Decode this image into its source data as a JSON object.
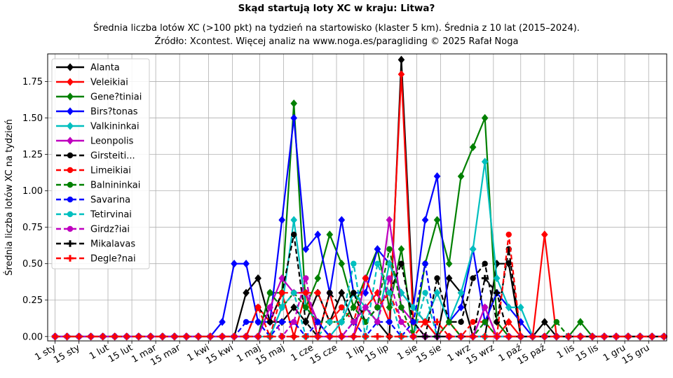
{
  "chart_data": {
    "type": "line",
    "title": "Skąd startują loty XC w kraju: Litwa?",
    "subtitle": "Średnia liczba lotów XC (>100 pkt) na tydzień na startowisko (klaster 5 km). Średnia z 10 lat (2015–2024).",
    "source": "Źródło: Xcontest. Więcej analiz na www.noga.es/paragliding © 2025 Rafał Noga",
    "xlabel": "",
    "ylabel": "Średnia liczba lotów XC na tydzień",
    "ylim": [
      -0.03,
      1.94
    ],
    "grid": true,
    "legend_position": "top-left",
    "x_ticks": [
      "1 sty",
      "15 sty",
      "1 lut",
      "15 lut",
      "1 mar",
      "15 mar",
      "1 kwi",
      "15 kwi",
      "1 maj",
      "15 maj",
      "1 cze",
      "15 cze",
      "1 lip",
      "15 lip",
      "1 sie",
      "15 sie",
      "1 wrz",
      "15 wrz",
      "1 paź",
      "15 paź",
      "1 lis",
      "15 lis",
      "1 gru",
      "15 gru"
    ],
    "y_ticks": [
      "0.00",
      "0.25",
      "0.50",
      "0.75",
      "1.00",
      "1.25",
      "1.50",
      "1.75"
    ],
    "weeks": [
      1,
      2,
      3,
      4,
      5,
      6,
      7,
      8,
      9,
      10,
      11,
      12,
      13,
      14,
      15,
      16,
      17,
      18,
      19,
      20,
      21,
      22,
      23,
      24,
      25,
      26,
      27,
      28,
      29,
      30,
      31,
      32,
      33,
      34,
      35,
      36,
      37,
      38,
      39,
      40,
      41,
      42,
      43,
      44,
      45,
      46,
      47,
      48,
      49,
      50,
      51,
      52
    ],
    "series": [
      {
        "name": "Alanta",
        "color": "#000000",
        "dash": "solid",
        "marker": "diamond",
        "values": [
          0,
          0,
          0,
          0,
          0,
          0,
          0,
          0,
          0,
          0,
          0,
          0,
          0,
          0,
          0,
          0,
          0.3,
          0.4,
          0.1,
          0.1,
          0.2,
          0.1,
          0.3,
          0.1,
          0.3,
          0.1,
          0.2,
          0.1,
          0,
          1.9,
          0.2,
          0.1,
          0,
          0.4,
          0.3,
          0,
          0,
          0.5,
          0.5,
          0,
          0,
          0.1,
          0,
          0,
          0,
          0,
          0,
          0,
          0,
          0,
          0,
          0
        ]
      },
      {
        "name": "Veleikiai",
        "color": "#ff0000",
        "dash": "solid",
        "marker": "diamond",
        "values": [
          0,
          0,
          0,
          0,
          0,
          0,
          0,
          0,
          0,
          0,
          0,
          0,
          0,
          0,
          0,
          0,
          0,
          0.2,
          0.1,
          0.3,
          0,
          0.3,
          0,
          0.3,
          0,
          0,
          0.2,
          0.3,
          0.1,
          1.8,
          0.1,
          0.1,
          0,
          0.1,
          0,
          0,
          0,
          0,
          0.1,
          0,
          0,
          0.7,
          0,
          0,
          0,
          0,
          0,
          0,
          0,
          0,
          0,
          0
        ]
      },
      {
        "name": "Gene?tiniai",
        "color": "#008000",
        "dash": "solid",
        "marker": "diamond",
        "values": [
          0,
          0,
          0,
          0,
          0,
          0,
          0,
          0,
          0,
          0,
          0,
          0,
          0,
          0,
          0,
          0,
          0,
          0,
          0.3,
          0.3,
          1.6,
          0.2,
          0.4,
          0.7,
          0.5,
          0.2,
          0.4,
          0.6,
          0.2,
          0.6,
          0,
          0.5,
          0.8,
          0.5,
          1.1,
          1.3,
          1.5,
          0.1,
          0,
          0,
          0,
          0,
          0,
          0,
          0.1,
          0,
          0,
          0,
          0,
          0,
          0,
          0
        ]
      },
      {
        "name": "Birs?tonas",
        "color": "#0000ff",
        "dash": "solid",
        "marker": "diamond",
        "values": [
          0,
          0,
          0,
          0,
          0,
          0,
          0,
          0,
          0,
          0,
          0,
          0,
          0,
          0,
          0.1,
          0.5,
          0.5,
          0.1,
          0.1,
          0.8,
          1.5,
          0.6,
          0.7,
          0.3,
          0.8,
          0.3,
          0.3,
          0.6,
          0.5,
          0.3,
          0.2,
          0.8,
          1.1,
          0.1,
          0.2,
          0.6,
          0.1,
          0.3,
          0.2,
          0.1,
          0,
          0,
          0,
          0,
          0,
          0,
          0,
          0,
          0,
          0,
          0,
          0
        ]
      },
      {
        "name": "Valkininkai",
        "color": "#00bfbf",
        "dash": "solid",
        "marker": "diamond",
        "values": [
          0,
          0,
          0,
          0,
          0,
          0,
          0,
          0,
          0,
          0,
          0,
          0,
          0,
          0,
          0,
          0,
          0,
          0,
          0,
          0.2,
          0.8,
          0.2,
          0.1,
          0,
          0.1,
          0.3,
          0.2,
          0.1,
          0.5,
          0.3,
          0.2,
          0.1,
          0.3,
          0.1,
          0.3,
          0.6,
          1.2,
          0.4,
          0.2,
          0.2,
          0,
          0,
          0,
          0,
          0,
          0,
          0,
          0,
          0,
          0,
          0,
          0
        ]
      },
      {
        "name": "Leonpolis",
        "color": "#bf00bf",
        "dash": "solid",
        "marker": "diamond",
        "values": [
          0,
          0,
          0,
          0,
          0,
          0,
          0,
          0,
          0,
          0,
          0,
          0,
          0,
          0,
          0,
          0,
          0,
          0,
          0.2,
          0.4,
          0.3,
          0.3,
          0.1,
          0,
          0,
          0,
          0.4,
          0.2,
          0.8,
          0.2,
          0.1,
          0,
          0,
          0,
          0,
          0,
          0.2,
          0,
          0,
          0,
          0,
          0,
          0,
          0,
          0,
          0,
          0,
          0,
          0,
          0,
          0,
          0
        ]
      },
      {
        "name": "Girsteiti...",
        "color": "#000000",
        "dash": "dashed",
        "marker": "circle",
        "values": [
          0,
          0,
          0,
          0,
          0,
          0,
          0,
          0,
          0,
          0,
          0,
          0,
          0,
          0,
          0,
          0,
          0,
          0.2,
          0.1,
          0.3,
          0.7,
          0.1,
          0,
          0.3,
          0.2,
          0.3,
          0.1,
          0.2,
          0.3,
          0.5,
          0.1,
          0,
          0.4,
          0.1,
          0.1,
          0.4,
          0.5,
          0.1,
          0.6,
          0,
          0,
          0,
          0,
          0,
          0,
          0,
          0,
          0,
          0,
          0,
          0,
          0
        ]
      },
      {
        "name": "Limeikiai",
        "color": "#ff0000",
        "dash": "dashed",
        "marker": "circle",
        "values": [
          0,
          0,
          0,
          0,
          0,
          0,
          0,
          0,
          0,
          0,
          0,
          0,
          0,
          0,
          0,
          0,
          0,
          0.2,
          0,
          0.3,
          0.3,
          0.3,
          0.3,
          0.1,
          0.2,
          0.1,
          0.4,
          0.2,
          0.3,
          0.1,
          0.1,
          0.1,
          0,
          0,
          0,
          0.1,
          0.1,
          0,
          0.7,
          0,
          0,
          0,
          0,
          0,
          0,
          0,
          0,
          0,
          0,
          0,
          0,
          0
        ]
      },
      {
        "name": "Balnininkai",
        "color": "#008000",
        "dash": "dashed",
        "marker": "circle",
        "values": [
          0,
          0,
          0,
          0,
          0,
          0,
          0,
          0,
          0,
          0,
          0,
          0,
          0,
          0,
          0,
          0,
          0,
          0,
          0.3,
          0.2,
          0.3,
          0.2,
          0.1,
          0.1,
          0.1,
          0.2,
          0.1,
          0.2,
          0.6,
          0.2,
          0,
          0,
          0,
          0.1,
          0,
          0,
          0.1,
          0,
          0,
          0,
          0,
          0,
          0.1,
          0,
          0,
          0,
          0,
          0,
          0,
          0,
          0,
          0
        ]
      },
      {
        "name": "Savarina",
        "color": "#0000ff",
        "dash": "dashed",
        "marker": "circle",
        "values": [
          0,
          0,
          0,
          0,
          0,
          0,
          0,
          0,
          0,
          0,
          0,
          0,
          0,
          0,
          0,
          0,
          0.1,
          0.1,
          0,
          0.1,
          0.1,
          0,
          0.1,
          0,
          0,
          0.1,
          0,
          0.1,
          0.1,
          0,
          0.1,
          0.5,
          0,
          0,
          0,
          0,
          0,
          0,
          0,
          0,
          0,
          0,
          0,
          0,
          0,
          0,
          0,
          0,
          0,
          0,
          0,
          0
        ]
      },
      {
        "name": "Tetirvinai",
        "color": "#00bfbf",
        "dash": "dashed",
        "marker": "circle",
        "values": [
          0,
          0,
          0,
          0,
          0,
          0,
          0,
          0,
          0,
          0,
          0,
          0,
          0,
          0,
          0,
          0,
          0,
          0,
          0,
          0.2,
          0.3,
          0,
          0,
          0.1,
          0.1,
          0.5,
          0,
          0.5,
          0.3,
          0,
          0,
          0.3,
          0,
          0,
          0,
          0,
          0,
          0,
          0,
          0,
          0,
          0,
          0,
          0,
          0,
          0,
          0,
          0,
          0,
          0,
          0,
          0
        ]
      },
      {
        "name": "Girdz?iai",
        "color": "#bf00bf",
        "dash": "dashed",
        "marker": "circle",
        "values": [
          0,
          0,
          0,
          0,
          0,
          0,
          0,
          0,
          0,
          0,
          0,
          0,
          0,
          0,
          0,
          0,
          0,
          0,
          0.2,
          0,
          0.1,
          0.4,
          0,
          0,
          0,
          0.1,
          0.2,
          0.1,
          0.4,
          0.1,
          0,
          0,
          0,
          0,
          0,
          0,
          0.2,
          0,
          0,
          0,
          0,
          0,
          0,
          0,
          0,
          0,
          0,
          0,
          0,
          0,
          0,
          0
        ]
      },
      {
        "name": "Mikalavas",
        "color": "#000000",
        "dash": "dashed",
        "marker": "plus",
        "values": [
          0,
          0,
          0,
          0,
          0,
          0,
          0,
          0,
          0,
          0,
          0,
          0,
          0,
          0,
          0,
          0,
          0,
          0,
          0,
          0,
          0,
          0,
          0,
          0,
          0,
          0,
          0,
          0,
          0,
          0,
          0,
          0,
          0,
          0,
          0,
          0,
          0.4,
          0.3,
          0,
          0,
          0,
          0,
          0,
          0,
          0,
          0,
          0,
          0,
          0,
          0,
          0,
          0
        ]
      },
      {
        "name": "Degle?nai",
        "color": "#ff0000",
        "dash": "dashed",
        "marker": "plus",
        "values": [
          0,
          0,
          0,
          0,
          0,
          0,
          0,
          0,
          0,
          0,
          0,
          0,
          0,
          0,
          0,
          0,
          0,
          0,
          0,
          0,
          0,
          0,
          0,
          0,
          0,
          0,
          0,
          0,
          0,
          0,
          0,
          0.1,
          0.1,
          0,
          0,
          0,
          0,
          0,
          0,
          0,
          0,
          0,
          0,
          0,
          0,
          0,
          0,
          0,
          0,
          0,
          0,
          0
        ]
      }
    ]
  }
}
